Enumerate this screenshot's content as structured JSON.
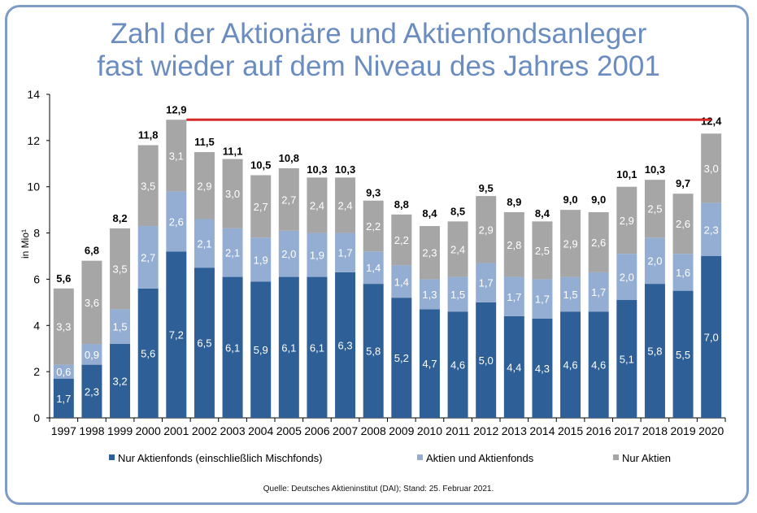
{
  "title_lines": [
    "Zahl der Aktionäre und Aktienfondsanleger",
    "fast wieder auf dem Niveau des Jahres 2001"
  ],
  "source": "Quelle: Deutsches Aktieninstitut (DAI); Stand: 25. Februar 2021.",
  "colors": {
    "nur_aktienfonds": "#2f5f97",
    "aktien_und_aktienfonds": "#94aed3",
    "nur_aktien": "#a6a6a6",
    "reference_line": "#d42a2a",
    "title": "#6b8cc0"
  },
  "chart_data": {
    "type": "bar",
    "stacked": true,
    "categories": [
      "1997",
      "1998",
      "1999",
      "2000",
      "2001",
      "2002",
      "2003",
      "2004",
      "2005",
      "2006",
      "2007",
      "2008",
      "2009",
      "2010",
      "2011",
      "2012",
      "2013",
      "2014",
      "2015",
      "2016",
      "2017",
      "2018",
      "2019",
      "2020"
    ],
    "series": [
      {
        "name": "Nur Aktienfonds (einschließlich Mischfonds)",
        "color": "#2f5f97",
        "values": [
          1.7,
          2.3,
          3.2,
          5.6,
          7.2,
          6.5,
          6.1,
          5.9,
          6.1,
          6.1,
          6.3,
          5.8,
          5.2,
          4.7,
          4.6,
          5.0,
          4.4,
          4.3,
          4.6,
          4.6,
          5.1,
          5.8,
          5.5,
          7.0
        ],
        "labels": [
          "1,7",
          "2,3",
          "3,2",
          "5,6",
          "7,2",
          "6,5",
          "6,1",
          "5,9",
          "6,1",
          "6,1",
          "6,3",
          "5,8",
          "5,2",
          "4,7",
          "4,6",
          "5,0",
          "4,4",
          "4,3",
          "4,6",
          "4,6",
          "5,1",
          "5,8",
          "5,5",
          "7,0"
        ]
      },
      {
        "name": "Aktien und Aktienfonds",
        "color": "#94aed3",
        "values": [
          0.6,
          0.9,
          1.5,
          2.7,
          2.6,
          2.1,
          2.1,
          1.9,
          2.0,
          1.9,
          1.7,
          1.4,
          1.4,
          1.3,
          1.5,
          1.7,
          1.7,
          1.7,
          1.5,
          1.7,
          2.0,
          2.0,
          1.6,
          2.3
        ],
        "labels": [
          "0,6",
          "0,9",
          "1,5",
          "2,7",
          "2,6",
          "2,1",
          "2,1",
          "1,9",
          "2,0",
          "1,9",
          "1,7",
          "1,4",
          "1,4",
          "1,3",
          "1,5",
          "1,7",
          "1,7",
          "1,7",
          "1,5",
          "1,7",
          "2,0",
          "2,0",
          "1,6",
          "2,3"
        ]
      },
      {
        "name": "Nur Aktien",
        "color": "#a6a6a6",
        "values": [
          3.3,
          3.6,
          3.5,
          3.5,
          3.1,
          2.9,
          3.0,
          2.7,
          2.7,
          2.4,
          2.4,
          2.2,
          2.2,
          2.3,
          2.4,
          2.9,
          2.8,
          2.5,
          2.9,
          2.6,
          2.9,
          2.5,
          2.6,
          3.0
        ],
        "labels": [
          "3,3",
          "3,6",
          "3,5",
          "3,5",
          "3,1",
          "2,9",
          "3,0",
          "2,7",
          "2,7",
          "2,4",
          "2,4",
          "2,2",
          "2,2",
          "2,3",
          "2,4",
          "2,9",
          "2,8",
          "2,5",
          "2,9",
          "2,6",
          "2,9",
          "2,5",
          "2,6",
          "3,0"
        ]
      }
    ],
    "totals": [
      5.6,
      6.8,
      8.2,
      11.8,
      12.9,
      11.5,
      11.1,
      10.5,
      10.8,
      10.3,
      10.3,
      9.3,
      8.8,
      8.4,
      8.5,
      9.5,
      8.9,
      8.4,
      9.0,
      9.0,
      10.1,
      10.3,
      9.7,
      12.4
    ],
    "total_labels": [
      "5,6",
      "6,8",
      "8,2",
      "11,8",
      "12,9",
      "11,5",
      "11,1",
      "10,5",
      "10,8",
      "10,3",
      "10,3",
      "9,3",
      "8,8",
      "8,4",
      "8,5",
      "9,5",
      "8,9",
      "8,4",
      "9,0",
      "9,0",
      "10,1",
      "10,3",
      "9,7",
      "12,4"
    ],
    "reference_line": {
      "y": 12.9,
      "from": "2001",
      "to": "2020"
    },
    "ylabel": "in Mio¹",
    "ylim": [
      0,
      14
    ],
    "yticks": [
      0,
      2,
      4,
      6,
      8,
      10,
      12,
      14
    ],
    "legend": "bottom",
    "grid": false
  }
}
